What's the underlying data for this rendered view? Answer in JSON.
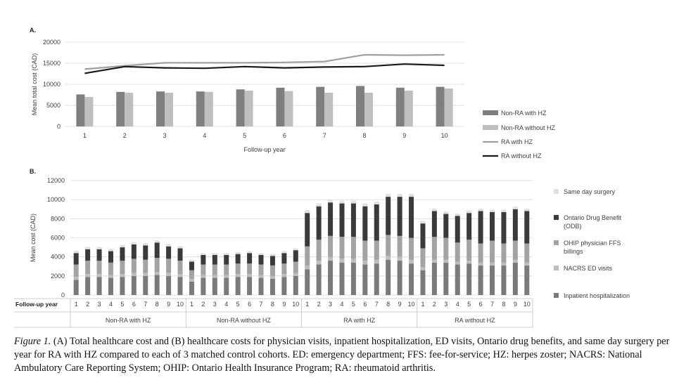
{
  "caption": {
    "lead": "Figure 1.",
    "text": " (A) Total healthcare cost and (B) healthcare costs for physician visits, inpatient hospitalization, ED visits, Ontario drug benefits, and same day surgery per year for RA with HZ compared to each of 3 matched control cohorts. ED: emergency department; FFS: fee-for-service; HZ: herpes zoster; NACRS: National Ambulatory Care Reporting System; OHIP: Ontario Health Insurance Program; RA: rheumatoid arthritis."
  },
  "colors": {
    "nonra_hz": "#7f7f7f",
    "nonra_nohz": "#bfbfbf",
    "ra_hz_line": "#a0a0a0",
    "ra_nohz_line": "#1a1a1a",
    "inpatient": "#7a7a7a",
    "nacrs": "#bdbdbd",
    "ohip": "#a3a3a3",
    "odb": "#3a3a3a",
    "sds": "#e0e0e0",
    "axis_text": "#404040",
    "grid": "#d9d9d9"
  },
  "chart_data": [
    {
      "type": "bar",
      "panel": "A.",
      "xlabel": "Follow-up year",
      "ylabel": "Mean total cost (CAD)",
      "ylim": [
        0,
        20000
      ],
      "yticks": [
        0,
        5000,
        10000,
        15000,
        20000
      ],
      "categories": [
        "1",
        "2",
        "3",
        "4",
        "5",
        "6",
        "7",
        "8",
        "9",
        "10"
      ],
      "series": [
        {
          "name": "Non-RA with HZ",
          "kind": "bar",
          "values": [
            7600,
            8200,
            8300,
            8300,
            8800,
            9200,
            9400,
            9600,
            9200,
            9400
          ]
        },
        {
          "name": "Non-RA without HZ",
          "kind": "bar",
          "values": [
            7000,
            8000,
            8000,
            8200,
            8500,
            8400,
            8000,
            8000,
            8500,
            9000
          ]
        },
        {
          "name": "RA with HZ",
          "kind": "line",
          "values": [
            13600,
            14400,
            15100,
            15100,
            15100,
            15200,
            15400,
            17000,
            16900,
            17000
          ]
        },
        {
          "name": "RA without HZ",
          "kind": "line",
          "values": [
            12600,
            14200,
            13900,
            13800,
            14200,
            13900,
            14100,
            14200,
            14800,
            14500
          ]
        }
      ],
      "legend": "right"
    },
    {
      "type": "bar",
      "stacked": true,
      "panel": "B.",
      "ylabel": "Mean cost (CAD)",
      "ylim": [
        0,
        12000
      ],
      "yticks": [
        0,
        2000,
        4000,
        6000,
        8000,
        10000,
        12000
      ],
      "xlabel_prefix": "Follow-up year",
      "categories": [
        "1",
        "2",
        "3",
        "4",
        "5",
        "6",
        "7",
        "8",
        "9",
        "10"
      ],
      "groups": [
        {
          "name": "Non-RA with HZ",
          "inpatient": [
            1600,
            1900,
            1900,
            1800,
            1900,
            2000,
            2000,
            2100,
            2000,
            1900
          ],
          "nacrs": [
            300,
            300,
            300,
            300,
            300,
            300,
            300,
            300,
            300,
            300
          ],
          "ohip": [
            1300,
            1400,
            1400,
            1300,
            1400,
            1500,
            1400,
            1500,
            1500,
            1400
          ],
          "odb": [
            1200,
            1200,
            1200,
            1200,
            1400,
            1500,
            1500,
            1600,
            1300,
            1300
          ],
          "sds": [
            250,
            250,
            250,
            250,
            250,
            250,
            250,
            250,
            250,
            250
          ]
        },
        {
          "name": "Non-RA without HZ",
          "inpatient": [
            1400,
            1800,
            1800,
            1800,
            1900,
            1900,
            1800,
            1700,
            1900,
            2000
          ],
          "nacrs": [
            300,
            300,
            300,
            300,
            300,
            300,
            300,
            300,
            300,
            300
          ],
          "ohip": [
            900,
            1100,
            1100,
            1100,
            1100,
            1100,
            1100,
            1100,
            1100,
            1200
          ],
          "odb": [
            900,
            1000,
            1000,
            1000,
            1000,
            1100,
            1000,
            1000,
            1100,
            1200
          ],
          "sds": [
            200,
            200,
            200,
            200,
            200,
            200,
            200,
            200,
            200,
            200
          ]
        },
        {
          "name": "RA with HZ",
          "inpatient": [
            2700,
            3200,
            3600,
            3400,
            3400,
            3200,
            3300,
            3700,
            3600,
            3300
          ],
          "nacrs": [
            400,
            400,
            400,
            400,
            400,
            400,
            400,
            400,
            400,
            400
          ],
          "ohip": [
            2000,
            2200,
            2200,
            2300,
            2300,
            2100,
            2000,
            2200,
            2200,
            2300
          ],
          "odb": [
            3500,
            3500,
            3500,
            3500,
            3500,
            3600,
            3800,
            4000,
            4100,
            4300
          ],
          "sds": [
            300,
            300,
            300,
            300,
            300,
            300,
            300,
            300,
            300,
            300
          ]
        },
        {
          "name": "RA without HZ",
          "inpatient": [
            2600,
            3400,
            3400,
            3200,
            3300,
            3100,
            3100,
            3100,
            3400,
            3100
          ],
          "nacrs": [
            300,
            300,
            300,
            300,
            300,
            300,
            300,
            300,
            300,
            300
          ],
          "ohip": [
            2000,
            2400,
            2300,
            2000,
            2200,
            2000,
            2300,
            2000,
            2000,
            2000
          ],
          "odb": [
            2600,
            2700,
            2500,
            2800,
            2800,
            3400,
            3000,
            3300,
            3300,
            3400
          ],
          "sds": [
            250,
            250,
            250,
            250,
            250,
            250,
            250,
            250,
            250,
            250
          ]
        }
      ],
      "legend_entries": [
        {
          "key": "sds",
          "label": [
            "Same day surgery"
          ]
        },
        {
          "key": "odb",
          "label": [
            "Ontario Drug Benefit",
            "(ODB)"
          ]
        },
        {
          "key": "ohip",
          "label": [
            "OHIP physician FFS",
            "billings"
          ]
        },
        {
          "key": "nacrs",
          "label": [
            "NACRS ED visits"
          ]
        },
        {
          "key": "inpatient",
          "label": [
            "Inpatient hospitalization"
          ]
        }
      ],
      "legend": "right"
    }
  ]
}
